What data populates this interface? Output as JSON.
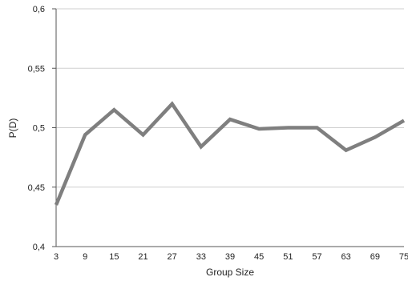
{
  "chart_data": {
    "type": "line",
    "title": "",
    "xlabel": "Group Size",
    "ylabel": "P(D)",
    "categories": [
      "3",
      "9",
      "15",
      "21",
      "27",
      "33",
      "39",
      "45",
      "51",
      "57",
      "63",
      "69",
      "75"
    ],
    "ytick_labels": [
      "0,4",
      "0,45",
      "0,5",
      "0,55",
      "0,6"
    ],
    "ylim": [
      0.4,
      0.6
    ],
    "yticks": [
      0.4,
      0.45,
      0.5,
      0.55,
      0.6
    ],
    "grid": true,
    "legend": "none",
    "series": [
      {
        "values": [
          0.435,
          0.494,
          0.515,
          0.494,
          0.52,
          0.484,
          0.507,
          0.499,
          0.5,
          0.5,
          0.481,
          0.492,
          0.506
        ],
        "color": "#7f7f7f"
      }
    ],
    "colors": {
      "grid": "#cfcfcf",
      "axis": "#555555",
      "line": "#7f7f7f"
    }
  }
}
